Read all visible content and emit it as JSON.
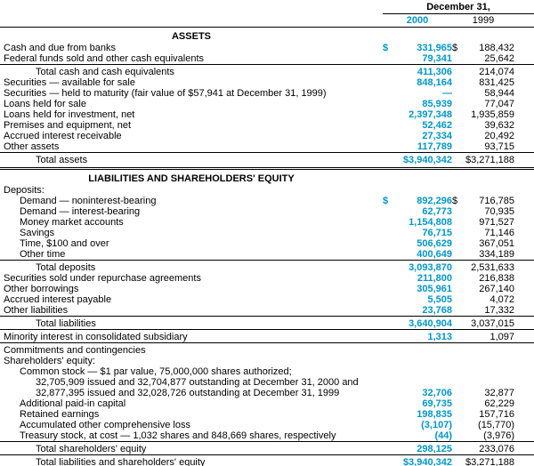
{
  "colors": {
    "accent_2000": "#0096c8",
    "text": "#000000",
    "rule": "#000000"
  },
  "header": {
    "date": "December 31,",
    "years": [
      "2000",
      "1999"
    ]
  },
  "sections": [
    {
      "title": "ASSETS",
      "rows": [
        {
          "label": "Cash and due from banks",
          "indent": 0,
          "v0": "$ 331,965",
          "v1": "$ 188,432"
        },
        {
          "label": "Federal funds sold and other cash equivalents",
          "indent": 0,
          "v0": "79,341",
          "v1": "25,642"
        },
        {
          "label": "Total cash and cash equivalents",
          "indent": 2,
          "v0": "411,306",
          "v1": "214,074",
          "topline": true
        },
        {
          "label": "Securities — available for sale",
          "indent": 0,
          "v0": "848,164",
          "v1": "831,425"
        },
        {
          "label": "Securities — held to maturity (fair value of $57,941 at December 31, 1999)",
          "indent": 0,
          "v0": "—",
          "v1": "58,944"
        },
        {
          "label": "Loans held for sale",
          "indent": 0,
          "v0": "85,939",
          "v1": "77,047"
        },
        {
          "label": "Loans held for investment, net",
          "indent": 0,
          "v0": "2,397,348",
          "v1": "1,935,859"
        },
        {
          "label": "Premises and equipment, net",
          "indent": 0,
          "v0": "52,462",
          "v1": "39,632"
        },
        {
          "label": "Accrued interest receivable",
          "indent": 0,
          "v0": "27,334",
          "v1": "20,492"
        },
        {
          "label": "Other assets",
          "indent": 0,
          "v0": "117,789",
          "v1": "93,715"
        },
        {
          "label": "Total assets",
          "indent": 2,
          "v0": "$3,940,342",
          "v1": "$3,271,188",
          "topline": true,
          "bottom": "double"
        }
      ]
    },
    {
      "title": "LIABILITIES AND SHAREHOLDERS' EQUITY",
      "rows": [
        {
          "label": "Deposits:",
          "indent": 0
        },
        {
          "label": "Demand — noninterest-bearing",
          "indent": 1,
          "v0": "$ 892,296",
          "v1": "$ 716,785"
        },
        {
          "label": "Demand — interest-bearing",
          "indent": 1,
          "v0": "62,773",
          "v1": "70,935"
        },
        {
          "label": "Money market accounts",
          "indent": 1,
          "v0": "1,154,808",
          "v1": "971,527"
        },
        {
          "label": "Savings",
          "indent": 1,
          "v0": "76,715",
          "v1": "71,146"
        },
        {
          "label": "Time, $100 and over",
          "indent": 1,
          "v0": "506,629",
          "v1": "367,051"
        },
        {
          "label": "Other time",
          "indent": 1,
          "v0": "400,649",
          "v1": "334,189"
        },
        {
          "label": "Total deposits",
          "indent": 2,
          "v0": "3,093,870",
          "v1": "2,531,633",
          "topline": true
        },
        {
          "label": "Securities sold under repurchase agreements",
          "indent": 0,
          "v0": "211,800",
          "v1": "216,838"
        },
        {
          "label": "Other borrowings",
          "indent": 0,
          "v0": "305,961",
          "v1": "267,140"
        },
        {
          "label": "Accrued interest payable",
          "indent": 0,
          "v0": "5,505",
          "v1": "4,072"
        },
        {
          "label": "Other liabilities",
          "indent": 0,
          "v0": "23,768",
          "v1": "17,332"
        },
        {
          "label": "Total liabilities",
          "indent": 2,
          "v0": "3,640,904",
          "v1": "3,037,015",
          "topline": true
        },
        {
          "label": "Minority interest in consolidated subsidiary",
          "indent": 0,
          "v0": "1,313",
          "v1": "1,097",
          "topline": true
        },
        {
          "label": "Commitments and contingencies",
          "indent": 0,
          "topline": true
        },
        {
          "label": "Shareholders' equity:",
          "indent": 0
        },
        {
          "label": "Common stock — $1 par value, 75,000,000 shares authorized;",
          "indent": 1
        },
        {
          "label": "32,705,909 issued and 32,704,877 outstanding at December 31, 2000 and",
          "indent": 2
        },
        {
          "label": "32,877,395 issued and 32,028,726 outstanding at December 31, 1999",
          "indent": 2,
          "v0": "32,706",
          "v1": "32,877"
        },
        {
          "label": "Additional paid-in capital",
          "indent": 1,
          "v0": "69,735",
          "v1": "62,229"
        },
        {
          "label": "Retained earnings",
          "indent": 1,
          "v0": "198,835",
          "v1": "157,716"
        },
        {
          "label": "Accumulated other comprehensive loss",
          "indent": 1,
          "v0": "(3,107)",
          "v1": "(15,770)"
        },
        {
          "label": "Treasury stock, at cost — 1,032 shares and 848,669 shares, respectively",
          "indent": 1,
          "v0": "(44)",
          "v1": "(3,976)"
        },
        {
          "label": "Total shareholders' equity",
          "indent": 2,
          "v0": "298,125",
          "v1": "233,076",
          "topline": true
        },
        {
          "label": "Total liabilities and shareholders' equity",
          "indent": 2,
          "v0": "$3,940,342",
          "v1": "$3,271,188",
          "topline": true,
          "bottom": "double"
        }
      ]
    }
  ]
}
